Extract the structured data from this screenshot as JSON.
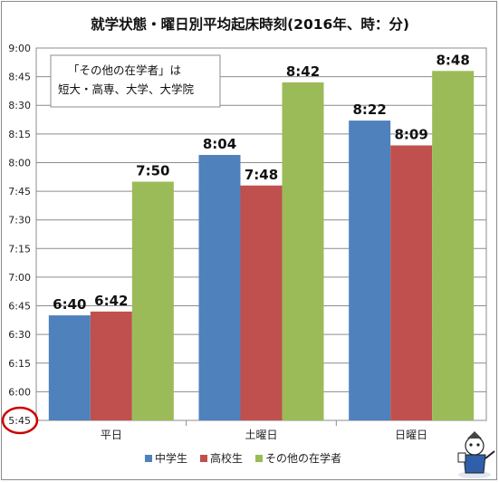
{
  "chart_data": {
    "type": "bar",
    "title": "就学状態・曜日別平均起床時刻(2016年、時：分)",
    "categories": [
      "平日",
      "土曜日",
      "日曜日"
    ],
    "series": [
      {
        "name": "中学生",
        "values": [
          "6:40",
          "8:04",
          "8:22"
        ],
        "color": "#4f81bd"
      },
      {
        "name": "高校生",
        "values": [
          "6:42",
          "7:48",
          "8:09"
        ],
        "color": "#c0504d"
      },
      {
        "name": "その他の在学者",
        "values": [
          "7:50",
          "8:42",
          "8:48"
        ],
        "color": "#9bbb59"
      }
    ],
    "y_ticks": [
      "9:00",
      "8:45",
      "8:30",
      "8:15",
      "8:00",
      "7:45",
      "7:30",
      "7:15",
      "7:00",
      "6:45",
      "6:30",
      "6:15",
      "6:00",
      "5:45"
    ],
    "ylim": [
      "5:45",
      "9:00"
    ],
    "grid": true,
    "legend_position": "bottom",
    "note_lines": [
      "「その他の在学者」は",
      "短大・高専、大学、大学院"
    ],
    "axis_break_marker": "5:45"
  },
  "colors": {
    "gridline": "#8c8c8c",
    "highlight_circle": "#cc0000"
  }
}
